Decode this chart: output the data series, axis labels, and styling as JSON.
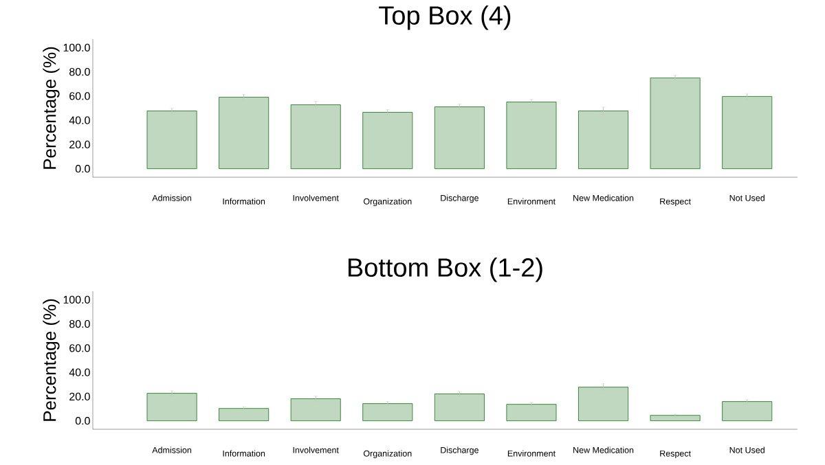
{
  "chart_data": [
    {
      "type": "bar",
      "title": "Top Box (4)",
      "ylabel": "Percentage (%)",
      "categories": [
        "Admission",
        "Information",
        "Involvement",
        "Organization",
        "Discharge",
        "Environment",
        "New Medication",
        "Respect",
        "Not Used"
      ],
      "values": [
        47.7,
        59.1,
        52.8,
        46.6,
        51.1,
        55.1,
        47.7,
        75.0,
        59.7
      ],
      "errors": [
        2.4,
        2.4,
        2.8,
        2.3,
        2.3,
        2.3,
        3.2,
        2.2,
        2.4
      ],
      "color": "#c0d8c0",
      "ylim": [
        -7,
        107
      ],
      "yticks": [
        {
          "value": 0,
          "label": "0.0"
        },
        {
          "value": 20,
          "label": "20.0"
        },
        {
          "value": 40,
          "label": "40.0"
        },
        {
          "value": 60,
          "label": "60.0"
        },
        {
          "value": 80,
          "label": "80.0"
        },
        {
          "value": 100,
          "label": "100.0"
        }
      ]
    },
    {
      "type": "bar",
      "title": "Bottom Box (1-2)",
      "ylabel": "Percentage (%)",
      "categories": [
        "Admission",
        "Information",
        "Involvement",
        "Organization",
        "Discharge",
        "Environment",
        "New Medication",
        "Respect",
        "Not Used"
      ],
      "values": [
        22.7,
        10.2,
        18.2,
        14.2,
        22.2,
        13.6,
        27.8,
        4.5,
        15.9
      ],
      "errors": [
        2.1,
        1.4,
        2.2,
        1.7,
        1.9,
        1.7,
        2.8,
        1.0,
        1.6
      ],
      "color": "#c0d8c0",
      "ylim": [
        -7,
        107
      ],
      "yticks": [
        {
          "value": 0,
          "label": "0.0"
        },
        {
          "value": 20,
          "label": "20.0"
        },
        {
          "value": 40,
          "label": "40.0"
        },
        {
          "value": 60,
          "label": "60.0"
        },
        {
          "value": 80,
          "label": "80.0"
        },
        {
          "value": 100,
          "label": "100.0"
        }
      ]
    }
  ]
}
